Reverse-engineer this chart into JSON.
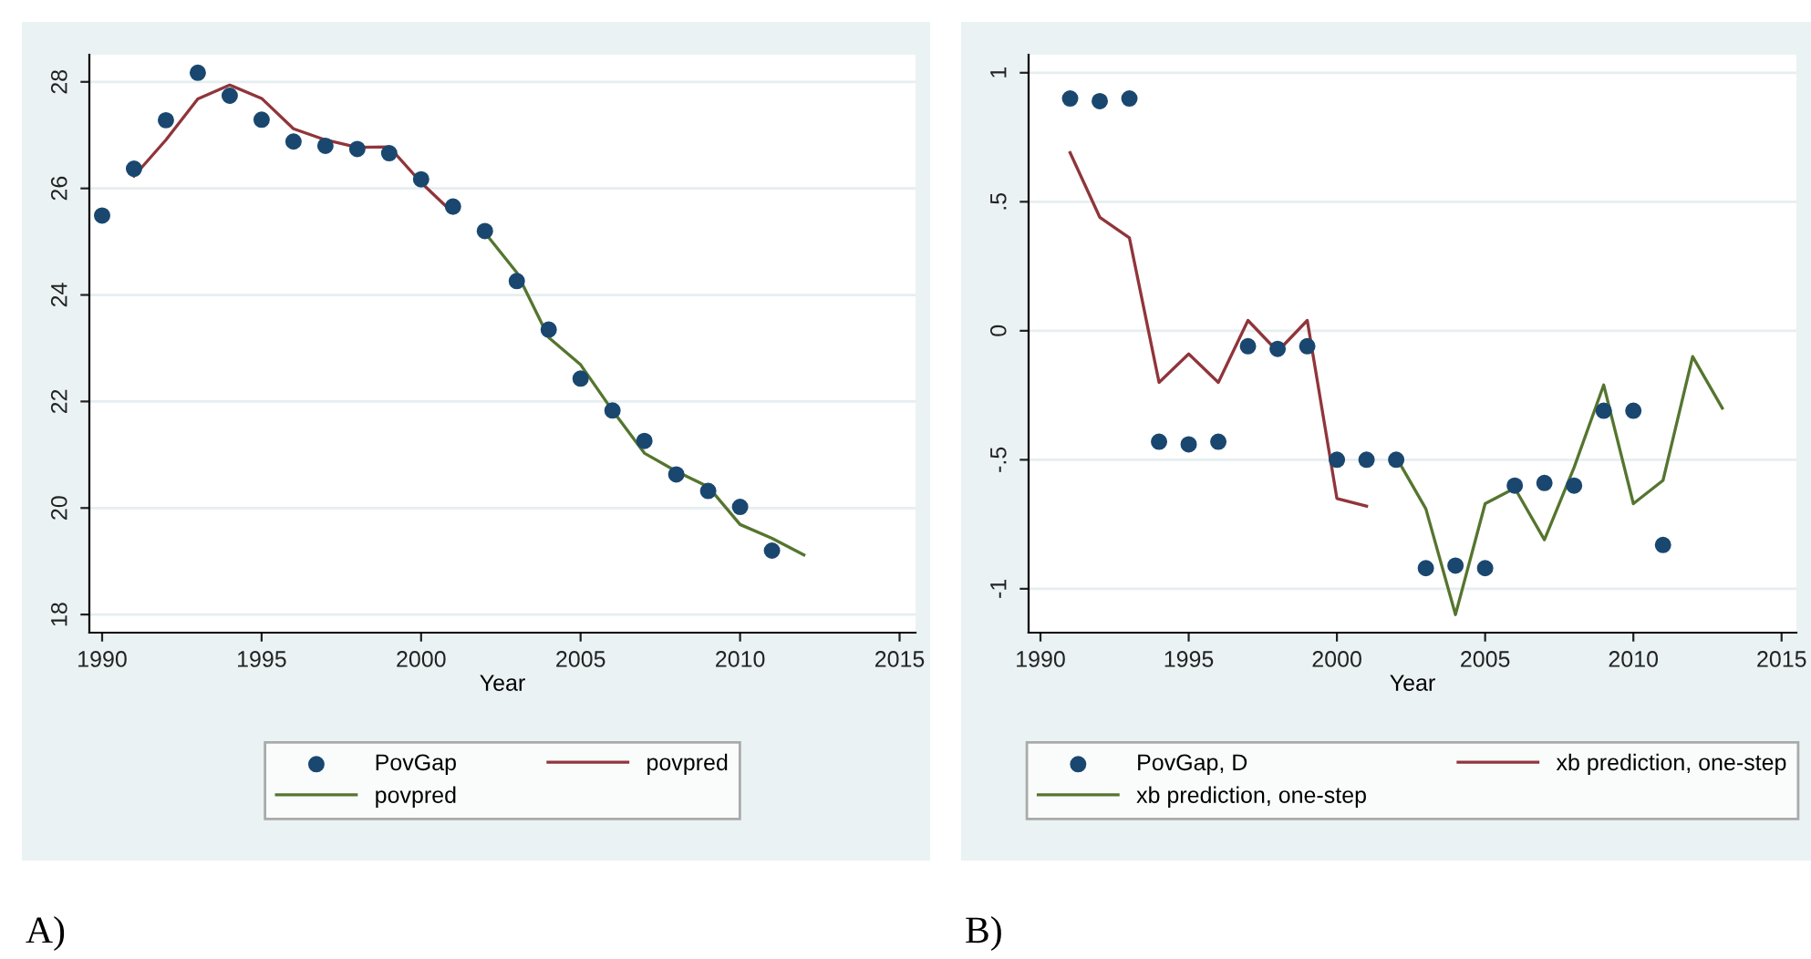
{
  "chart_data": [
    {
      "type": "line",
      "title": "A)",
      "xlabel": "Year",
      "xlim": [
        1989.6,
        2015.5
      ],
      "xticks": [
        1990,
        1995,
        2000,
        2005,
        2010,
        2015
      ],
      "ylim": [
        17.66,
        28.51
      ],
      "yticks": [
        18,
        20,
        22,
        24,
        26,
        28
      ],
      "grid": "y",
      "legend": "bottom",
      "series": [
        {
          "name": "PovGap",
          "type": "scatter",
          "marker": "circle",
          "color": "#1a476f",
          "x": [
            1990,
            1991,
            1992,
            1993,
            1994,
            1995,
            1996,
            1997,
            1998,
            1999,
            2000,
            2001,
            2002,
            2003,
            2004,
            2005,
            2006,
            2007,
            2008,
            2009,
            2010,
            2011
          ],
          "values": [
            25.49,
            26.37,
            27.28,
            28.17,
            27.74,
            27.29,
            26.88,
            26.8,
            26.74,
            26.66,
            26.17,
            25.66,
            25.2,
            24.26,
            23.35,
            22.43,
            21.83,
            21.26,
            20.63,
            20.32,
            20.02,
            19.2
          ]
        },
        {
          "name": "povpred",
          "type": "line",
          "color": "#90353b",
          "x": [
            1991,
            1992,
            1993,
            1994,
            1995,
            1996,
            1997,
            1998,
            1999,
            2000,
            2001
          ],
          "values": [
            26.23,
            26.91,
            27.68,
            27.94,
            27.69,
            27.12,
            26.91,
            26.77,
            26.78,
            26.11,
            25.54
          ]
        },
        {
          "name": "povpred",
          "type": "line",
          "color": "#55752f",
          "x": [
            2002,
            2003,
            2004,
            2005,
            2006,
            2007,
            2008,
            2009,
            2010,
            2011,
            2012
          ],
          "values": [
            25.17,
            24.42,
            23.2,
            22.69,
            21.83,
            21.03,
            20.69,
            20.4,
            19.69,
            19.43,
            19.12
          ]
        }
      ]
    },
    {
      "type": "line",
      "title": "B)",
      "xlabel": "Year",
      "xlim": [
        1989.6,
        2015.5
      ],
      "xticks": [
        1990,
        1995,
        2000,
        2005,
        2010,
        2015
      ],
      "ylim": [
        -1.17,
        1.07
      ],
      "yticks": [
        {
          "value": -1,
          "label": "-1"
        },
        {
          "value": -0.5,
          "label": "-.5"
        },
        0,
        {
          "value": 0.5,
          "label": ".5"
        },
        1
      ],
      "grid": "y",
      "legend": "bottom",
      "series": [
        {
          "name": "PovGap, D",
          "type": "scatter",
          "marker": "circle",
          "color": "#1a476f",
          "x": [
            1991,
            1992,
            1993,
            1994,
            1995,
            1996,
            1997,
            1998,
            1999,
            2000,
            2001,
            2002,
            2003,
            2004,
            2005,
            2006,
            2007,
            2008,
            2009,
            2010,
            2011
          ],
          "values": [
            0.9,
            0.89,
            0.9,
            -0.43,
            -0.44,
            -0.43,
            -0.06,
            -0.07,
            -0.06,
            -0.5,
            -0.5,
            -0.5,
            -0.92,
            -0.91,
            -0.92,
            -0.6,
            -0.59,
            -0.6,
            -0.31,
            -0.31,
            -0.83
          ]
        },
        {
          "name": "xb prediction, one-step",
          "type": "line",
          "color": "#90353b",
          "x": [
            1991,
            1992,
            1993,
            1994,
            1995,
            1996,
            1997,
            1998,
            1999,
            2000,
            2001
          ],
          "values": [
            0.69,
            0.44,
            0.36,
            -0.2,
            -0.09,
            -0.2,
            0.04,
            -0.08,
            0.04,
            -0.65,
            -0.68
          ]
        },
        {
          "name": "xb prediction, one-step",
          "type": "line",
          "color": "#55752f",
          "x": [
            2002,
            2003,
            2004,
            2005,
            2006,
            2007,
            2008,
            2009,
            2010,
            2011,
            2012,
            2013
          ],
          "values": [
            -0.49,
            -0.69,
            -1.1,
            -0.67,
            -0.61,
            -0.81,
            -0.53,
            -0.21,
            -0.67,
            -0.58,
            -0.1,
            -0.3
          ]
        }
      ]
    }
  ]
}
